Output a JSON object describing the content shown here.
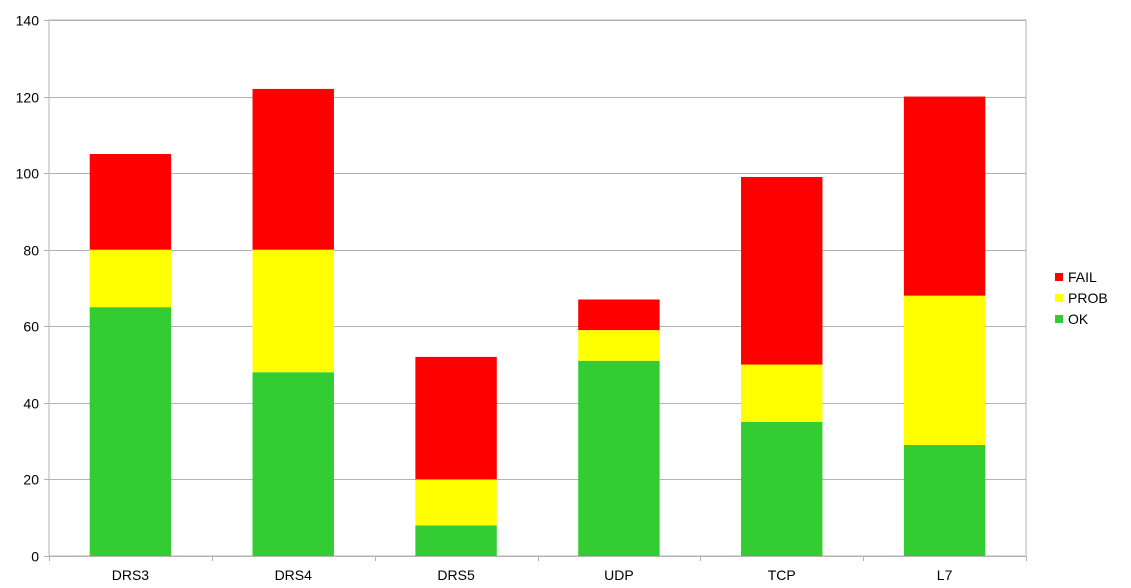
{
  "chart_data": {
    "type": "bar",
    "stacked": true,
    "categories": [
      "DRS3",
      "DRS4",
      "DRS5",
      "UDP",
      "TCP",
      "L7"
    ],
    "series": [
      {
        "name": "OK",
        "values": [
          65,
          48,
          8,
          51,
          35,
          29
        ],
        "color": "#33cc33"
      },
      {
        "name": "PROB",
        "values": [
          15,
          32,
          12,
          8,
          15,
          39
        ],
        "color": "#ffff00"
      },
      {
        "name": "FAIL",
        "values": [
          25,
          42,
          32,
          8,
          49,
          52
        ],
        "color": "#ff0000"
      }
    ],
    "ylim": [
      0,
      140
    ],
    "yticks": [
      0,
      20,
      40,
      60,
      80,
      100,
      120,
      140
    ],
    "grid": true,
    "legend_position": "right",
    "legend_order": [
      "FAIL",
      "PROB",
      "OK"
    ]
  }
}
